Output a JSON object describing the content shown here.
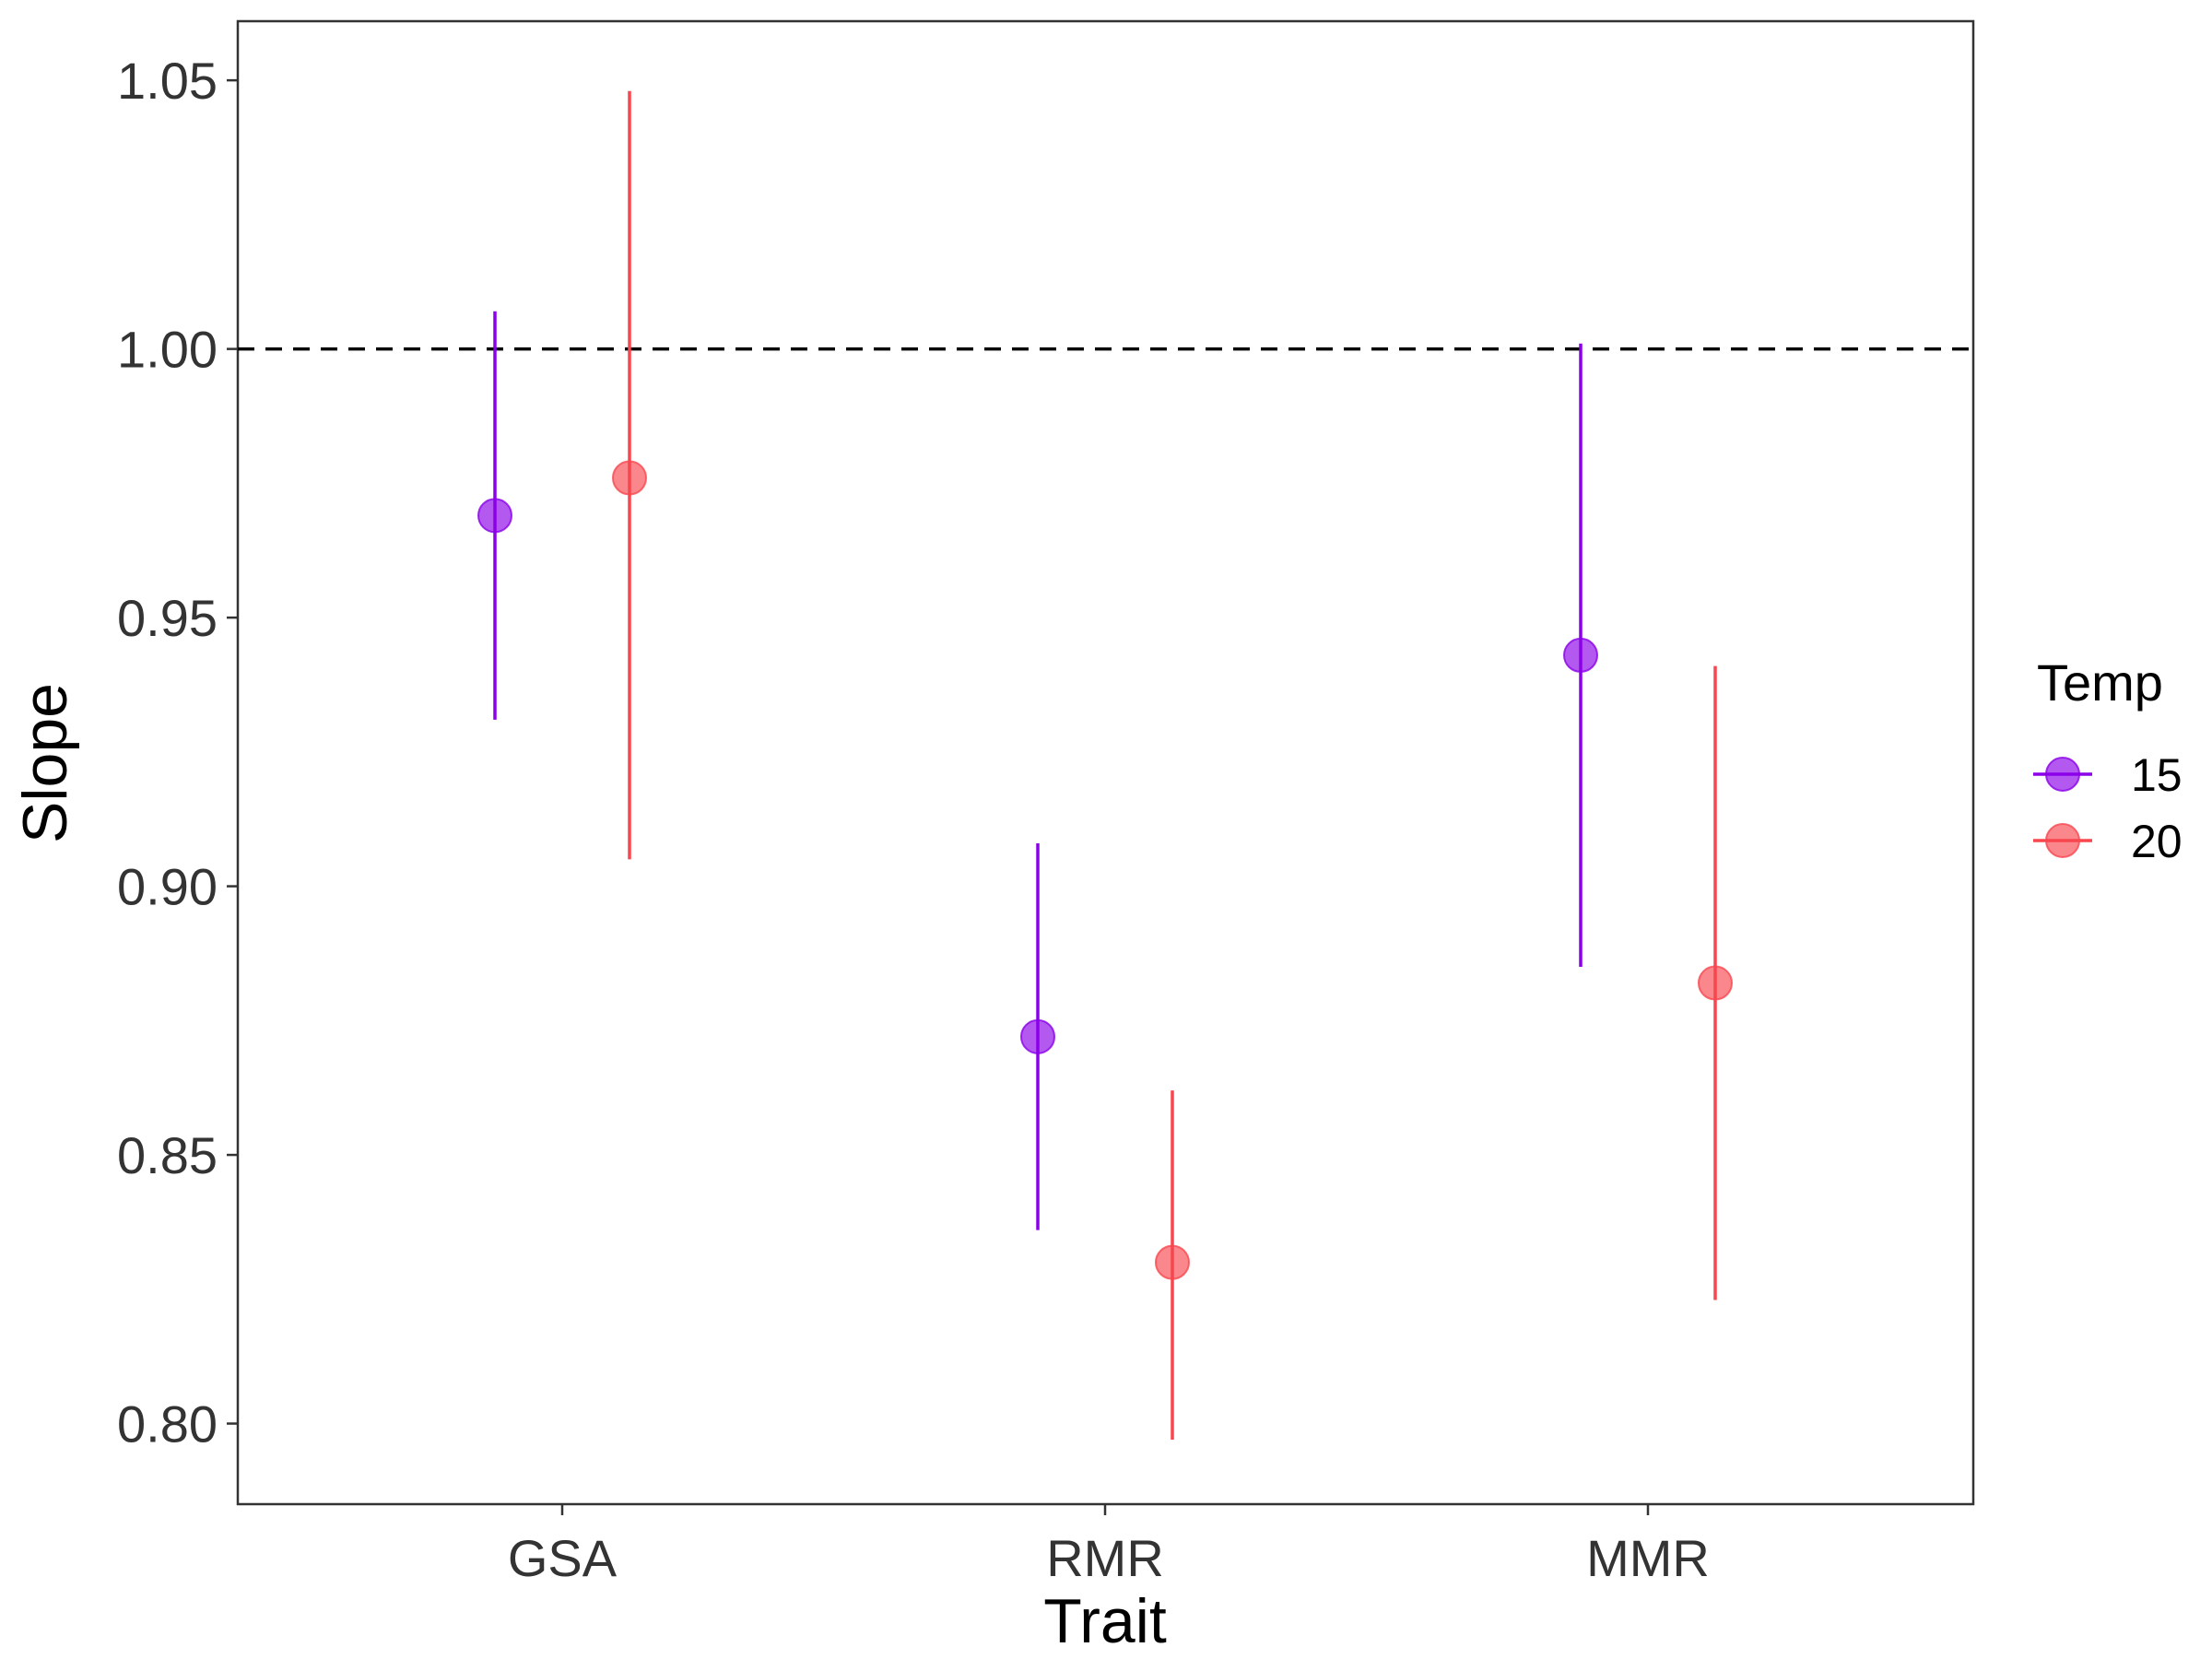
{
  "chart_data": {
    "type": "scatter",
    "subtype": "point-range",
    "xlabel": "Trait",
    "ylabel": "Slope",
    "categories": [
      "GSA",
      "RMR",
      "MMR"
    ],
    "ylim": [
      0.785,
      1.061
    ],
    "yticks": [
      "0.80",
      "0.85",
      "0.90",
      "0.95",
      "1.00",
      "1.05"
    ],
    "reference_line": {
      "y": 1.0,
      "style": "dashed",
      "color": "#000000"
    },
    "grid": false,
    "legend": {
      "title": "Temp",
      "position": "right"
    },
    "series": [
      {
        "name": "15",
        "color": "#8B00E8",
        "points": [
          {
            "category": "GSA",
            "y": 0.969,
            "lower": 0.931,
            "upper": 1.007
          },
          {
            "category": "RMR",
            "y": 0.872,
            "lower": 0.836,
            "upper": 0.908
          },
          {
            "category": "MMR",
            "y": 0.943,
            "lower": 0.885,
            "upper": 1.001
          }
        ]
      },
      {
        "name": "20",
        "color": "#F8474F",
        "points": [
          {
            "category": "GSA",
            "y": 0.976,
            "lower": 0.905,
            "upper": 1.048
          },
          {
            "category": "RMR",
            "y": 0.83,
            "lower": 0.797,
            "upper": 0.862
          },
          {
            "category": "MMR",
            "y": 0.882,
            "lower": 0.823,
            "upper": 0.941
          }
        ]
      }
    ]
  }
}
